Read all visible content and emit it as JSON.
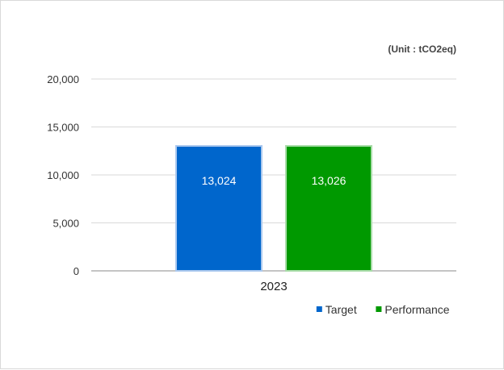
{
  "chart_data": {
    "type": "bar",
    "unit_label": "(Unit : tCO2eq)",
    "categories": [
      "2023"
    ],
    "series": [
      {
        "name": "Target",
        "values": [
          13024
        ],
        "labels": [
          "13,024"
        ],
        "color": "#0066cc",
        "border": "#aac8ee"
      },
      {
        "name": "Performance",
        "values": [
          13026
        ],
        "labels": [
          "13,026"
        ],
        "color": "#009900",
        "border": "#a8dca8"
      }
    ],
    "y_ticks": [
      {
        "value": 0,
        "label": "0"
      },
      {
        "value": 5000,
        "label": "5,000"
      },
      {
        "value": 10000,
        "label": "10,000"
      },
      {
        "value": 15000,
        "label": "15,000"
      },
      {
        "value": 20000,
        "label": "20,000"
      }
    ],
    "ylim": [
      0,
      20000
    ],
    "grid": true,
    "legend_position": "bottom-right",
    "colors": {
      "grid": "#d9d9d9",
      "axis": "#888888"
    }
  }
}
